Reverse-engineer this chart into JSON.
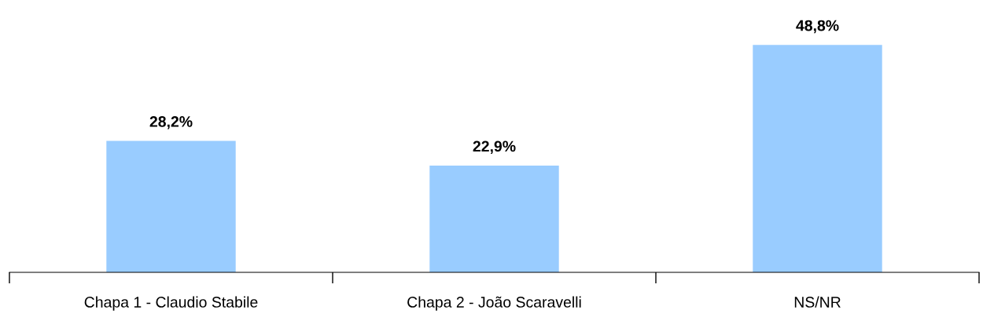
{
  "chart_data": {
    "type": "bar",
    "categories": [
      "Chapa 1 - Claudio Stabile",
      "Chapa 2 - João Scaravelli",
      "NS/NR"
    ],
    "values": [
      28.2,
      22.9,
      48.8
    ],
    "value_labels": [
      "28,2%",
      "22,9%",
      "48,8%"
    ],
    "color": "#99ccff",
    "grid": false
  }
}
